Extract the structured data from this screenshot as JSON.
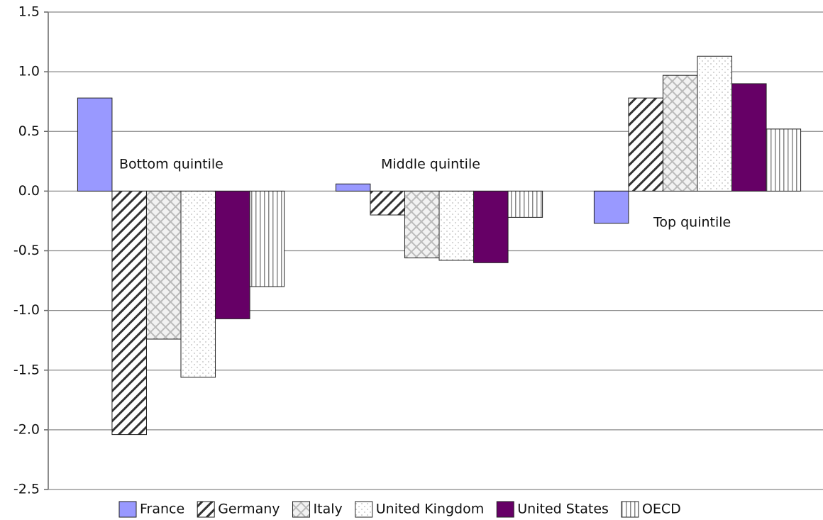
{
  "chart_data": {
    "type": "bar",
    "categories": [
      "Bottom quintile",
      "Middle quintile",
      "Top quintile"
    ],
    "series": [
      {
        "name": "France",
        "color": "#9999ff",
        "pattern": "solid",
        "values": [
          0.78,
          0.06,
          -0.27
        ]
      },
      {
        "name": "Germany",
        "color": "#333333",
        "pattern": "diagonal",
        "values": [
          -2.04,
          -0.2,
          0.78
        ]
      },
      {
        "name": "Italy",
        "color": "#bbbbbb",
        "pattern": "crosshatch",
        "values": [
          -1.24,
          -0.56,
          0.97
        ]
      },
      {
        "name": "United Kingdom",
        "color": "#bbbbbb",
        "pattern": "dots",
        "values": [
          -1.56,
          -0.58,
          1.13
        ]
      },
      {
        "name": "United States",
        "color": "#660066",
        "pattern": "solid",
        "values": [
          -1.07,
          -0.6,
          0.9
        ]
      },
      {
        "name": "OECD",
        "color": "#888888",
        "pattern": "vertical",
        "values": [
          -0.8,
          -0.22,
          0.52
        ]
      }
    ],
    "ylim": [
      -2.5,
      1.5
    ],
    "yticks": [
      1.5,
      {
        "value": 1,
        "label": "1.0"
      },
      0.5,
      {
        "value": 0,
        "label": "0.0"
      },
      -0.5,
      {
        "value": -1,
        "label": "-1.0"
      },
      -1.5,
      {
        "value": -2,
        "label": "-2.0"
      },
      -2.5
    ],
    "grid": true,
    "legend": "bottom"
  }
}
